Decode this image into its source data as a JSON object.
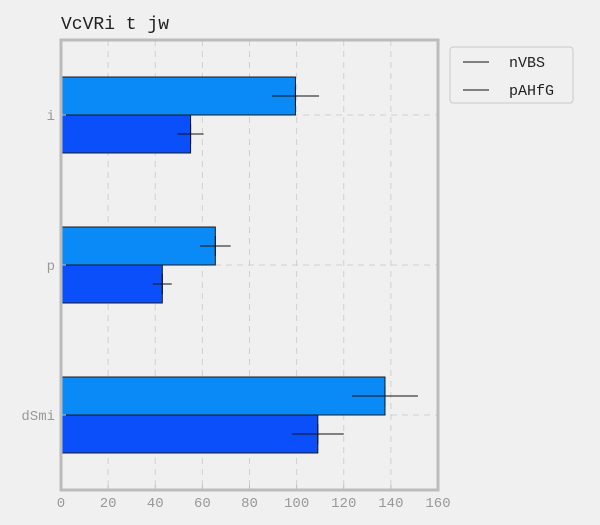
{
  "chart_data": {
    "type": "bar",
    "orientation": "horizontal",
    "title": "VcVRi t jw",
    "xlabel": "",
    "ylabel": "",
    "categories": [
      "i",
      "p",
      "dSmi"
    ],
    "series": [
      {
        "name": "nVBS",
        "color": "#0a8af7",
        "values": [
          99.5,
          65.5,
          137.5
        ],
        "errors": [
          10,
          6.5,
          14
        ]
      },
      {
        "name": "pAHfG",
        "color": "#0a4ffa",
        "values": [
          55,
          43,
          109
        ],
        "errors": [
          5.5,
          4,
          11
        ]
      }
    ],
    "xlim": [
      0,
      160
    ],
    "xticks": [
      0,
      20,
      40,
      60,
      80,
      100,
      120,
      140,
      160
    ],
    "grid": true,
    "legend_position": "outside-top-right"
  }
}
